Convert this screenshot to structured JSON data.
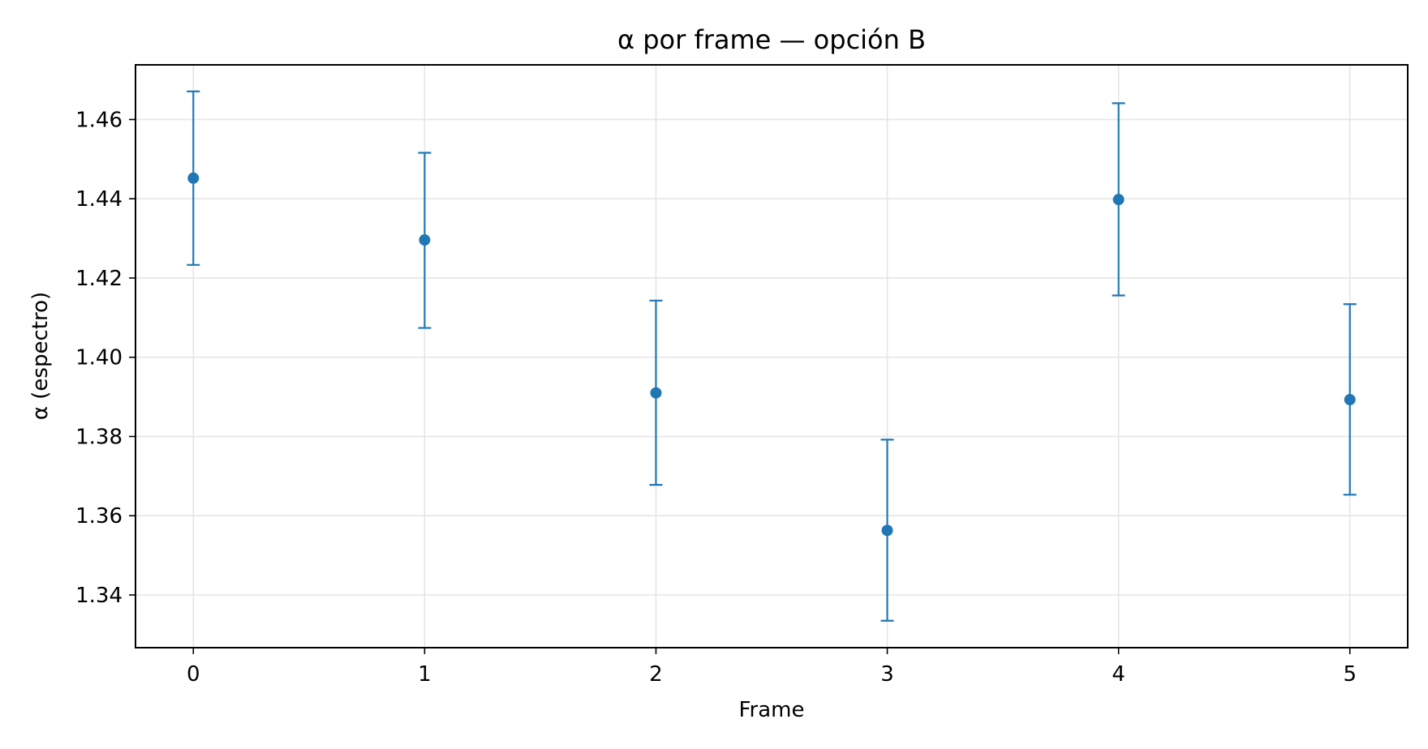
{
  "chart_data": {
    "type": "scatter",
    "title": "α por frame — opción B",
    "xlabel": "Frame",
    "ylabel": "α (espectro)",
    "x": [
      0,
      1,
      2,
      3,
      4,
      5
    ],
    "series": [
      {
        "values": [
          1.4452,
          1.4296,
          1.391,
          1.3563,
          1.4398,
          1.3893
        ],
        "error_low": [
          1.4233,
          1.4074,
          1.3678,
          1.3335,
          1.4156,
          1.3653
        ],
        "error_high": [
          1.4671,
          1.4516,
          1.4143,
          1.3792,
          1.4641,
          1.4134
        ]
      }
    ],
    "xticks": [
      "0",
      "1",
      "2",
      "3",
      "4",
      "5"
    ],
    "yticks": [
      "1.34",
      "1.36",
      "1.38",
      "1.40",
      "1.42",
      "1.44",
      "1.46"
    ],
    "xlim": [
      -0.25,
      5.25
    ],
    "ylim": [
      1.3267,
      1.4738
    ],
    "grid": true,
    "colors": {
      "series": "#1f77b4",
      "grid": "#e5e5e5",
      "axes": "#000000"
    }
  }
}
